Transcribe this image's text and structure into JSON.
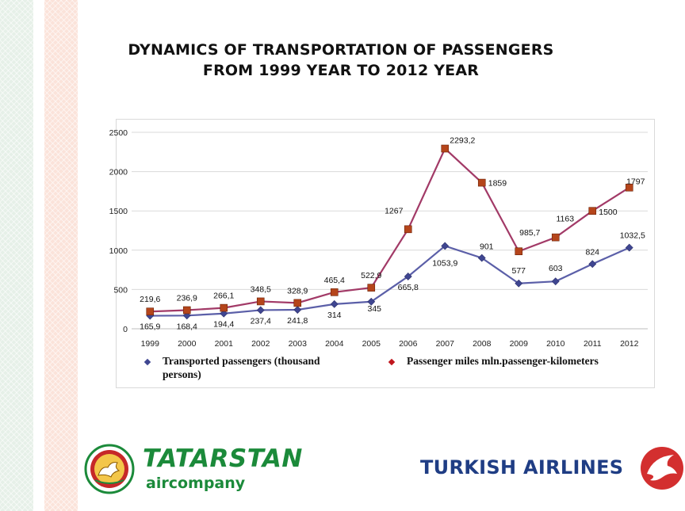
{
  "title": {
    "line1": "DYNAMICS OF TRANSPORTATION OF PASSENGERS",
    "line2": "FROM 1999 YEAR TO  2012 YEAR"
  },
  "colors": {
    "series1_line": "#5b5fa8",
    "series1_marker": "#3f4691",
    "series2_line": "#a23a67",
    "series2_marker": "#b5451b",
    "tatarstan_green": "#1b8a3a",
    "turkish_blue": "#1f3d84",
    "turkish_red": "#d32f2f"
  },
  "chart_data": {
    "type": "line",
    "categories": [
      "1999",
      "2000",
      "2001",
      "2002",
      "2003",
      "2004",
      "2005",
      "2006",
      "2007",
      "2008",
      "2009",
      "2010",
      "2011",
      "2012"
    ],
    "ylim": [
      0,
      2500
    ],
    "yticks": [
      "0",
      "500",
      "1000",
      "1500",
      "2000",
      "2500"
    ],
    "grid": true,
    "legend_position": "bottom",
    "series": [
      {
        "name": "Transported passengers (thousand persons)",
        "values": [
          165.9,
          168.4,
          194.4,
          237.4,
          241.8,
          314,
          345,
          665.8,
          1053.9,
          901,
          577,
          603,
          824,
          1032.5
        ],
        "labels": [
          "165,9",
          "168,4",
          "194,4",
          "237,4",
          "241,8",
          "314",
          "345",
          "665,8",
          "1053,9",
          "901",
          "577",
          "603",
          "824",
          "1032,5"
        ]
      },
      {
        "name": "Passenger miles mln.passenger-kilometers",
        "values": [
          219.6,
          236.9,
          266.1,
          348.5,
          328.9,
          465.4,
          522.9,
          1267,
          2293.2,
          1859,
          985.7,
          1163,
          1500,
          1797
        ],
        "labels": [
          "219,6",
          "236,9",
          "266,1",
          "348,5",
          "328,9",
          "465,4",
          "522,9",
          "1267",
          "2293,2",
          "1859",
          "985,7",
          "1163",
          "1500",
          "1797"
        ]
      }
    ]
  },
  "legend": {
    "item1": "Transported passengers (thousand persons)",
    "item2": "Passenger miles mln.passenger-kilometers"
  },
  "logos": {
    "tatarstan_name": "TATARSTAN",
    "tatarstan_sub": "aircompany",
    "turkish_name": "TURKISH AIRLINES"
  }
}
